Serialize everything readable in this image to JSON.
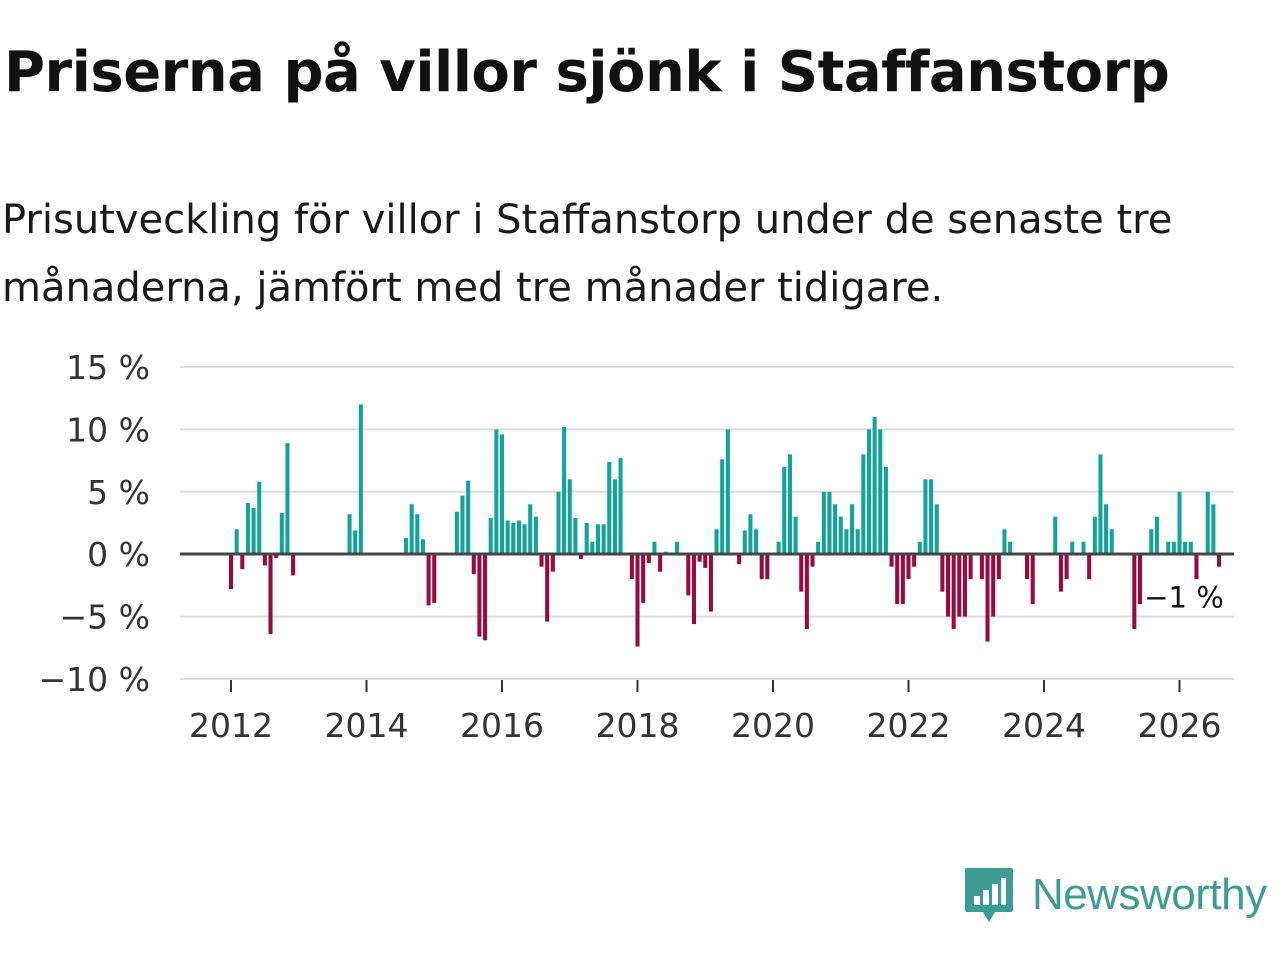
{
  "header": {
    "title": "Priserna på villor sjönk i Staffanstorp",
    "subtitle": "Prisutveckling för villor i Staffanstorp under de senaste tre månaderna, jämfört med tre månader tidigare."
  },
  "colors": {
    "positive": "#12a49a",
    "negative": "#9b0a3e",
    "grid": "#dddddd",
    "zero_line": "#444444",
    "brand": "#3d9c93"
  },
  "chart_data": {
    "type": "bar",
    "title": "Priserna på villor sjönk i Staffanstorp",
    "ylabel": "",
    "xlabel": "",
    "ylim": [
      -10,
      15
    ],
    "yticks": [
      15,
      10,
      5,
      0,
      -5,
      -10
    ],
    "ytick_labels": [
      "15 %",
      "10 %",
      "5 %",
      "0 %",
      "−5 %",
      "−10 %"
    ],
    "xticks": [
      2012,
      2014,
      2016,
      2018,
      2020,
      2022,
      2024,
      2026
    ],
    "xtick_labels": [
      "2012",
      "2014",
      "2016",
      "2018",
      "2020",
      "2022",
      "2024",
      "2026"
    ],
    "xlim": [
      2011.25,
      2026.83
    ],
    "start": {
      "year": 2012,
      "month": 1
    },
    "values": [
      -2.8,
      2.0,
      -1.2,
      4.1,
      3.7,
      5.8,
      -0.9,
      -6.4,
      -0.3,
      3.3,
      8.9,
      -1.7,
      null,
      null,
      null,
      null,
      null,
      null,
      null,
      null,
      null,
      3.2,
      1.9,
      12.0,
      null,
      null,
      null,
      null,
      null,
      null,
      null,
      1.3,
      4.0,
      3.2,
      1.2,
      -4.1,
      -3.9,
      null,
      null,
      null,
      3.4,
      4.7,
      5.9,
      -1.6,
      -6.6,
      -6.9,
      2.9,
      10.0,
      9.6,
      2.7,
      2.5,
      2.7,
      2.4,
      4.0,
      3.0,
      -1.0,
      -5.4,
      -1.4,
      5.0,
      10.2,
      6.0,
      2.9,
      -0.4,
      2.5,
      1.0,
      2.4,
      2.4,
      7.4,
      6.0,
      7.7,
      null,
      -2.0,
      -7.4,
      -3.9,
      -0.7,
      1.0,
      -1.4,
      0.2,
      null,
      1.0,
      null,
      -3.3,
      -5.6,
      -0.6,
      -1.1,
      -4.6,
      2.0,
      7.6,
      10.0,
      null,
      -0.8,
      1.9,
      3.2,
      2.0,
      -2.0,
      -2.0,
      null,
      1.0,
      7.0,
      8.0,
      3.0,
      -3.0,
      -6.0,
      -1.0,
      1.0,
      5.0,
      5.0,
      4.0,
      3.0,
      2.0,
      4.0,
      2.0,
      8.0,
      10.0,
      11.0,
      10.0,
      7.0,
      -1.0,
      -4.0,
      -4.0,
      -2.0,
      -1.0,
      1.0,
      6.0,
      6.0,
      4.0,
      -3.0,
      -5.0,
      -6.0,
      -5.0,
      -5.0,
      -2.0,
      null,
      -2.0,
      -7.0,
      -5.0,
      -2.0,
      2.0,
      1.0,
      null,
      null,
      -2.0,
      -4.0,
      null,
      null,
      null,
      3.0,
      -3.0,
      -2.0,
      1.0,
      null,
      1.0,
      -2.0,
      3.0,
      8.0,
      4.0,
      2.0,
      null,
      null,
      null,
      -6.0,
      -4.0,
      null,
      2.0,
      3.0,
      null,
      1.0,
      1.0,
      5.0,
      1.0,
      1.0,
      -2.0,
      null,
      5.0,
      4.0,
      -1.0
    ],
    "last_value_label": "−1 %"
  },
  "brand": {
    "name": "Newsworthy",
    "icon": "newsworthy-logo-icon"
  }
}
